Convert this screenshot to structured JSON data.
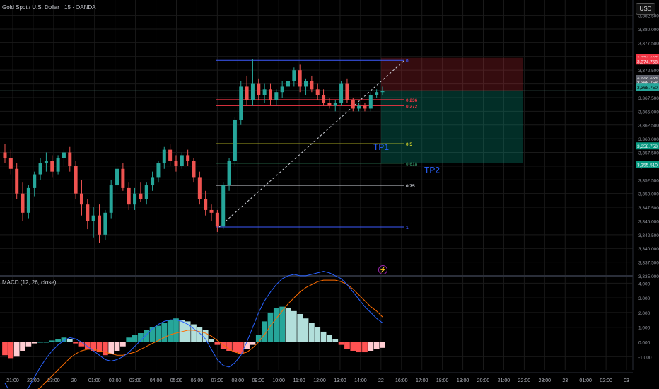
{
  "header": {
    "symbol_title": "Gold Spot / U.S. Dollar · 15 · OANDA"
  },
  "currency_button": {
    "label": "USD"
  },
  "indicator": {
    "title": "MACD (12, 26, close)"
  },
  "colors": {
    "up": "#26a69a",
    "down": "#ef5350",
    "background": "#000000",
    "grid": "#1a1a1a",
    "fib_frame": "#3d5afe",
    "macd_line": "#2962ff",
    "signal_line": "#ff6d00",
    "hist_up_strong": "#26a69a",
    "hist_up_weak": "#b2dfdb",
    "hist_down_strong": "#ff5252",
    "hist_down_weak": "#ffcdd2"
  },
  "chart_data": [
    {
      "type": "candlestick",
      "title": "Gold Spot / U.S. Dollar · 15 · OANDA",
      "x_tick_labels": [
        "21:00",
        "22:00",
        "23:00",
        "20",
        "01:00",
        "02:00",
        "03:00",
        "04:00",
        "05:00",
        "06:00",
        "07:00",
        "08:00",
        "09:00",
        "10:00",
        "11:00",
        "12:00",
        "13:00",
        "14:00",
        "22",
        "16:00",
        "17:00",
        "18:00",
        "19:00",
        "20:00",
        "21:00",
        "22:00",
        "23:00",
        "23",
        "01:00",
        "02:00",
        "03"
      ],
      "y_tick_labels": [
        "3,382.500",
        "3,380.000",
        "3,377.500",
        "3,375.000",
        "3,372.500",
        "3,370.000",
        "3,367.500",
        "3,365.000",
        "3,362.500",
        "3,360.000",
        "3,357.500",
        "3,355.000",
        "3,352.500",
        "3,350.000",
        "3,347.500",
        "3,345.000",
        "3,342.500",
        "3,340.000",
        "3,337.500",
        "3,335.000"
      ],
      "ylim": [
        3335,
        3384
      ],
      "grid": true,
      "candles": [
        {
          "o": 3357.5,
          "h": 3359.0,
          "l": 3355.5,
          "c": 3356.5
        },
        {
          "o": 3356.5,
          "h": 3358.0,
          "l": 3353.5,
          "c": 3354.5
        },
        {
          "o": 3354.5,
          "h": 3355.5,
          "l": 3349.0,
          "c": 3350.0
        },
        {
          "o": 3350.0,
          "h": 3352.0,
          "l": 3345.0,
          "c": 3346.5
        },
        {
          "o": 3346.5,
          "h": 3351.5,
          "l": 3345.5,
          "c": 3351.0
        },
        {
          "o": 3351.0,
          "h": 3354.0,
          "l": 3349.5,
          "c": 3353.5
        },
        {
          "o": 3353.5,
          "h": 3356.5,
          "l": 3352.5,
          "c": 3355.5
        },
        {
          "o": 3355.5,
          "h": 3357.5,
          "l": 3354.0,
          "c": 3356.0
        },
        {
          "o": 3356.0,
          "h": 3357.0,
          "l": 3353.0,
          "c": 3354.0
        },
        {
          "o": 3354.0,
          "h": 3357.0,
          "l": 3353.5,
          "c": 3356.5
        },
        {
          "o": 3356.5,
          "h": 3358.0,
          "l": 3355.0,
          "c": 3357.5
        },
        {
          "o": 3357.5,
          "h": 3358.5,
          "l": 3354.0,
          "c": 3355.0
        },
        {
          "o": 3355.0,
          "h": 3356.0,
          "l": 3349.0,
          "c": 3350.0
        },
        {
          "o": 3350.0,
          "h": 3352.5,
          "l": 3346.0,
          "c": 3348.0
        },
        {
          "o": 3348.0,
          "h": 3349.0,
          "l": 3343.5,
          "c": 3345.0
        },
        {
          "o": 3345.0,
          "h": 3347.5,
          "l": 3342.0,
          "c": 3346.0
        },
        {
          "o": 3346.0,
          "h": 3348.0,
          "l": 3341.0,
          "c": 3342.5
        },
        {
          "o": 3342.5,
          "h": 3347.0,
          "l": 3341.5,
          "c": 3346.5
        },
        {
          "o": 3346.5,
          "h": 3352.5,
          "l": 3345.5,
          "c": 3351.5
        },
        {
          "o": 3351.5,
          "h": 3355.0,
          "l": 3350.5,
          "c": 3354.5
        },
        {
          "o": 3354.5,
          "h": 3355.5,
          "l": 3350.5,
          "c": 3351.0
        },
        {
          "o": 3351.0,
          "h": 3352.0,
          "l": 3347.0,
          "c": 3348.0
        },
        {
          "o": 3348.0,
          "h": 3351.0,
          "l": 3347.0,
          "c": 3350.0
        },
        {
          "o": 3350.0,
          "h": 3352.0,
          "l": 3348.5,
          "c": 3349.0
        },
        {
          "o": 3349.0,
          "h": 3352.0,
          "l": 3348.0,
          "c": 3351.5
        },
        {
          "o": 3351.5,
          "h": 3354.0,
          "l": 3350.5,
          "c": 3353.0
        },
        {
          "o": 3353.0,
          "h": 3356.0,
          "l": 3352.0,
          "c": 3355.5
        },
        {
          "o": 3355.5,
          "h": 3358.5,
          "l": 3354.5,
          "c": 3358.0
        },
        {
          "o": 3358.0,
          "h": 3359.0,
          "l": 3355.0,
          "c": 3356.0
        },
        {
          "o": 3356.0,
          "h": 3357.0,
          "l": 3354.0,
          "c": 3355.0
        },
        {
          "o": 3355.0,
          "h": 3357.5,
          "l": 3354.5,
          "c": 3357.0
        },
        {
          "o": 3357.0,
          "h": 3358.0,
          "l": 3355.0,
          "c": 3356.0
        },
        {
          "o": 3356.0,
          "h": 3356.5,
          "l": 3352.0,
          "c": 3353.0
        },
        {
          "o": 3353.0,
          "h": 3354.0,
          "l": 3348.0,
          "c": 3349.0
        },
        {
          "o": 3349.0,
          "h": 3350.5,
          "l": 3346.0,
          "c": 3347.0
        },
        {
          "o": 3347.0,
          "h": 3348.0,
          "l": 3345.0,
          "c": 3346.5
        },
        {
          "o": 3346.5,
          "h": 3347.0,
          "l": 3343.0,
          "c": 3344.0
        },
        {
          "o": 3344.0,
          "h": 3352.0,
          "l": 3343.5,
          "c": 3351.5
        },
        {
          "o": 3351.5,
          "h": 3356.5,
          "l": 3350.5,
          "c": 3356.0
        },
        {
          "o": 3356.0,
          "h": 3364.0,
          "l": 3355.0,
          "c": 3363.5
        },
        {
          "o": 3363.5,
          "h": 3370.5,
          "l": 3362.5,
          "c": 3369.5
        },
        {
          "o": 3369.5,
          "h": 3371.5,
          "l": 3366.0,
          "c": 3367.0
        },
        {
          "o": 3367.0,
          "h": 3374.5,
          "l": 3366.0,
          "c": 3370.0
        },
        {
          "o": 3370.0,
          "h": 3371.0,
          "l": 3367.0,
          "c": 3368.0
        },
        {
          "o": 3368.0,
          "h": 3370.0,
          "l": 3366.5,
          "c": 3369.0
        },
        {
          "o": 3369.0,
          "h": 3370.0,
          "l": 3366.0,
          "c": 3367.0
        },
        {
          "o": 3367.0,
          "h": 3369.0,
          "l": 3366.0,
          "c": 3368.5
        },
        {
          "o": 3368.5,
          "h": 3370.5,
          "l": 3367.5,
          "c": 3369.5
        },
        {
          "o": 3369.5,
          "h": 3371.5,
          "l": 3368.5,
          "c": 3370.5
        },
        {
          "o": 3370.5,
          "h": 3373.0,
          "l": 3369.5,
          "c": 3372.5
        },
        {
          "o": 3372.5,
          "h": 3373.5,
          "l": 3368.5,
          "c": 3369.5
        },
        {
          "o": 3369.5,
          "h": 3371.0,
          "l": 3368.0,
          "c": 3370.5
        },
        {
          "o": 3370.5,
          "h": 3371.5,
          "l": 3368.5,
          "c": 3369.0
        },
        {
          "o": 3369.0,
          "h": 3370.0,
          "l": 3367.0,
          "c": 3368.0
        },
        {
          "o": 3368.0,
          "h": 3369.0,
          "l": 3366.0,
          "c": 3366.5
        },
        {
          "o": 3366.5,
          "h": 3367.5,
          "l": 3365.5,
          "c": 3366.0
        },
        {
          "o": 3366.0,
          "h": 3367.0,
          "l": 3365.0,
          "c": 3366.5
        },
        {
          "o": 3366.5,
          "h": 3370.5,
          "l": 3366.0,
          "c": 3370.0
        },
        {
          "o": 3370.0,
          "h": 3371.0,
          "l": 3366.5,
          "c": 3367.0
        },
        {
          "o": 3367.0,
          "h": 3367.5,
          "l": 3365.0,
          "c": 3365.5
        },
        {
          "o": 3365.5,
          "h": 3366.5,
          "l": 3365.0,
          "c": 3366.0
        },
        {
          "o": 3366.0,
          "h": 3366.5,
          "l": 3365.0,
          "c": 3365.5
        },
        {
          "o": 3365.5,
          "h": 3368.5,
          "l": 3365.0,
          "c": 3368.0
        },
        {
          "o": 3368.0,
          "h": 3369.0,
          "l": 3367.5,
          "c": 3368.5
        },
        {
          "o": 3368.5,
          "h": 3369.5,
          "l": 3368.0,
          "c": 3368.75
        }
      ],
      "fibonacci": {
        "top": 3374.3,
        "bottom": 3343.9,
        "levels": [
          {
            "ratio": 0,
            "label": "0",
            "color": "#3d5afe"
          },
          {
            "ratio": 0.236,
            "label": "0.236",
            "color": "#f23645"
          },
          {
            "ratio": 0.272,
            "label": "0.272",
            "color": "#f23645"
          },
          {
            "ratio": 0.5,
            "label": "0.5",
            "color": "#d4d42a"
          },
          {
            "ratio": 0.618,
            "label": "0.618",
            "color": "#2e7d57"
          },
          {
            "ratio": 0.75,
            "label": "0.75",
            "color": "#d1d4dc"
          },
          {
            "ratio": 1,
            "label": "1",
            "color": "#3d5afe"
          }
        ]
      },
      "position": {
        "entry": 3368.75,
        "stop": 3374.758,
        "target": 3355.51
      },
      "annotations": [
        {
          "text": "TP1",
          "price": 3358.6,
          "color": "#2962ff"
        },
        {
          "text": "TP2",
          "price": 3354.4,
          "color": "#2962ff"
        }
      ],
      "price_tags": [
        {
          "text": "3,374.827",
          "price": 3374.83,
          "bg": "#f23645",
          "fg": "#ffffff"
        },
        {
          "text": "3,374.758",
          "price": 3374.16,
          "bg": "#f23645",
          "fg": "#ffffff"
        },
        {
          "text": "3,368.827",
          "price": 3370.98,
          "bg": "#5d606b",
          "fg": "#ffffff"
        },
        {
          "text": "3,368.758",
          "price": 3370.31,
          "bg": "#5d606b",
          "fg": "#ffffff"
        },
        {
          "text": "3,368.750",
          "price": 3369.4,
          "bg": "#26a69a",
          "fg": "#000000"
        },
        {
          "text": "3,358.758",
          "price": 3358.7,
          "bg": "#089981",
          "fg": "#ffffff"
        },
        {
          "text": "3,355.510",
          "price": 3355.3,
          "bg": "#089981",
          "fg": "#ffffff"
        }
      ]
    },
    {
      "type": "macd",
      "title": "MACD (12, 26, close)",
      "y_tick_labels": [
        "4.000",
        "3.000",
        "2.000",
        "1.000",
        "0.000",
        "-1.000"
      ],
      "ylim": [
        -1.9,
        4.4
      ],
      "histogram": [
        -0.9,
        -1.1,
        -1.0,
        -0.6,
        -0.3,
        -0.1,
        0.0,
        0.0,
        0.1,
        0.2,
        0.3,
        0.2,
        -0.1,
        -0.3,
        -0.5,
        -0.6,
        -0.7,
        -0.9,
        -0.8,
        -0.6,
        -0.3,
        0.3,
        0.5,
        0.6,
        0.8,
        1.0,
        1.1,
        1.3,
        1.5,
        1.6,
        1.5,
        1.4,
        1.2,
        1.0,
        0.8,
        0.2,
        -0.2,
        -0.5,
        -0.6,
        -0.7,
        -0.8,
        -0.5,
        -0.2,
        0.5,
        1.4,
        2.0,
        2.3,
        2.4,
        2.3,
        2.1,
        1.9,
        1.6,
        1.3,
        1.0,
        0.7,
        0.5,
        0.2,
        -0.2,
        -0.5,
        -0.6,
        -0.7,
        -0.7,
        -0.6,
        -0.5,
        -0.4
      ],
      "macd_line": [
        -2.8,
        -3.5,
        -3.8,
        -3.6,
        -3.1,
        -2.4,
        -1.7,
        -1.1,
        -0.6,
        -0.2,
        0.1,
        0.3,
        0.2,
        0.0,
        -0.3,
        -0.6,
        -0.9,
        -1.2,
        -1.3,
        -1.2,
        -1.0,
        -0.7,
        -0.3,
        0.1,
        0.5,
        0.9,
        1.2,
        1.4,
        1.5,
        1.5,
        1.4,
        1.2,
        0.9,
        0.6,
        0.2,
        -0.5,
        -1.2,
        -1.6,
        -1.7,
        -1.4,
        -0.9,
        0.0,
        1.0,
        2.0,
        2.8,
        3.4,
        3.9,
        4.3,
        4.5,
        4.6,
        4.5,
        4.5,
        4.6,
        4.7,
        4.8,
        4.7,
        4.5,
        4.3,
        3.9,
        3.4,
        2.9,
        2.4,
        2.0,
        1.6,
        1.3
      ],
      "signal_line": [
        -3.5,
        -3.6,
        -3.7,
        -3.7,
        -3.6,
        -3.4,
        -3.1,
        -2.7,
        -2.3,
        -1.9,
        -1.5,
        -1.1,
        -0.8,
        -0.6,
        -0.5,
        -0.5,
        -0.6,
        -0.7,
        -0.8,
        -0.9,
        -0.9,
        -0.8,
        -0.7,
        -0.5,
        -0.3,
        -0.1,
        0.1,
        0.3,
        0.5,
        0.6,
        0.7,
        0.8,
        0.8,
        0.7,
        0.6,
        0.4,
        0.1,
        -0.2,
        -0.5,
        -0.7,
        -0.8,
        -0.7,
        -0.4,
        0.0,
        0.5,
        1.1,
        1.6,
        2.1,
        2.6,
        3.0,
        3.4,
        3.7,
        3.9,
        4.1,
        4.2,
        4.2,
        4.2,
        4.1,
        3.9,
        3.6,
        3.2,
        2.8,
        2.4,
        2.1,
        1.7
      ]
    }
  ]
}
